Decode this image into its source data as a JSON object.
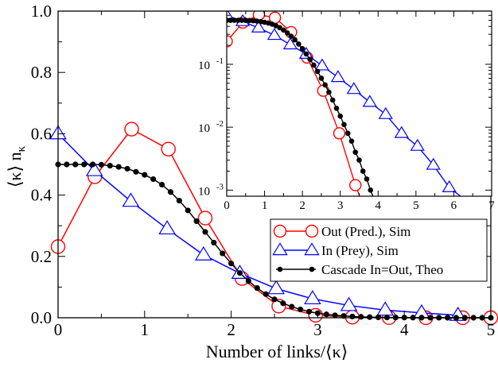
{
  "chart_data": [
    {
      "panel": "main",
      "type": "line",
      "xlabel_parts": [
        "Number of links/",
        "⟨κ⟩"
      ],
      "ylabel_parts": [
        "⟨κ⟩ n",
        "κ"
      ],
      "xlim": [
        0,
        5
      ],
      "ylim": [
        0,
        1.0
      ],
      "xticks": [
        0,
        1,
        2,
        3,
        4,
        5
      ],
      "xtick_labels": [
        "0",
        "1",
        "2",
        "3",
        "4",
        "5"
      ],
      "yticks": [
        0,
        0.2,
        0.4,
        0.6,
        0.8,
        1.0
      ],
      "ytick_labels": [
        "0.0",
        "0.2",
        "0.4",
        "0.6",
        "0.8",
        "1.0"
      ],
      "grid": false,
      "legend_position": "bottom-right",
      "series": [
        {
          "name": "Out (Pred.), Sim",
          "color": "#ff0000",
          "marker": "circle",
          "x": [
            0,
            0.425,
            0.85,
            1.275,
            1.7,
            2.125,
            2.55,
            2.975,
            3.4,
            3.825,
            4.25,
            4.675,
            5.0
          ],
          "y": [
            0.232,
            0.46,
            0.615,
            0.55,
            0.325,
            0.128,
            0.038,
            0.008,
            0.002,
            0.0005,
            0.0,
            0.0,
            0.0
          ]
        },
        {
          "name": "In (Prey), Sim",
          "color": "#0000ff",
          "marker": "triangle",
          "x": [
            0,
            0.42,
            0.84,
            1.26,
            1.68,
            2.1,
            2.52,
            2.94,
            3.36,
            3.78,
            4.2,
            4.62,
            5.04
          ],
          "y": [
            0.6,
            0.48,
            0.38,
            0.29,
            0.205,
            0.145,
            0.095,
            0.062,
            0.04,
            0.025,
            0.016,
            0.008,
            0.005
          ]
        },
        {
          "name": "Cascade In=Out, Theo",
          "color": "#000000",
          "marker": "dot",
          "x": [
            0,
            0.1,
            0.2,
            0.3,
            0.4,
            0.5,
            0.6,
            0.7,
            0.8,
            0.9,
            1.0,
            1.1,
            1.2,
            1.3,
            1.4,
            1.5,
            1.6,
            1.7,
            1.8,
            1.9,
            2.0,
            2.1,
            2.2,
            2.3,
            2.4,
            2.5,
            2.6,
            2.7,
            2.8,
            2.9,
            3.0,
            3.1,
            3.2,
            3.3,
            3.4,
            3.5,
            3.6,
            3.7,
            3.8,
            3.9,
            4.0,
            4.1,
            4.2,
            4.3,
            4.4,
            4.5,
            4.6,
            4.7,
            4.8,
            4.9,
            5.0
          ],
          "y": [
            0.5,
            0.5,
            0.5,
            0.5,
            0.5,
            0.499,
            0.496,
            0.492,
            0.486,
            0.476,
            0.466,
            0.452,
            0.434,
            0.41,
            0.382,
            0.35,
            0.315,
            0.28,
            0.245,
            0.21,
            0.177,
            0.146,
            0.12,
            0.097,
            0.077,
            0.06,
            0.047,
            0.036,
            0.027,
            0.02,
            0.015,
            0.011,
            0.008,
            0.006,
            0.004,
            0.003,
            0.002,
            0.0015,
            0.001,
            0.0008,
            0.0006,
            0.0004,
            0.0003,
            0.0002,
            0.0001,
            0.0,
            0.0,
            0.0,
            0.0,
            0.0,
            0.0
          ]
        }
      ]
    },
    {
      "panel": "inset",
      "type": "line",
      "log_y": true,
      "xlim": [
        0,
        7
      ],
      "ylim": [
        0.0008,
        0.7
      ],
      "xticks": [
        0,
        1,
        2,
        3,
        4,
        5,
        6,
        7
      ],
      "xtick_labels": [
        "0",
        "1",
        "2",
        "3",
        "4",
        "5",
        "6",
        "7"
      ],
      "yticks": [
        0.001,
        0.01,
        0.1
      ],
      "ytick_labels": [
        {
          "base": "10",
          "exp": "-3"
        },
        {
          "base": "10",
          "exp": "-2"
        },
        {
          "base": "10",
          "exp": "-1"
        }
      ],
      "grid": false,
      "series": [
        {
          "name": "Out (Pred.), Sim",
          "color": "#ff0000",
          "marker": "circle",
          "x": [
            0,
            0.425,
            0.85,
            1.275,
            1.7,
            2.125,
            2.55,
            2.975,
            3.4,
            3.55
          ],
          "y": [
            0.232,
            0.46,
            0.615,
            0.55,
            0.325,
            0.128,
            0.038,
            0.008,
            0.0012,
            0.0007
          ]
        },
        {
          "name": "In (Prey), Sim",
          "color": "#0000ff",
          "marker": "triangle",
          "x": [
            0,
            0.42,
            0.84,
            1.26,
            1.68,
            2.1,
            2.52,
            2.94,
            3.36,
            3.78,
            4.2,
            4.62,
            5.04,
            5.46,
            5.88,
            6.3
          ],
          "y": [
            0.6,
            0.48,
            0.38,
            0.29,
            0.205,
            0.145,
            0.095,
            0.062,
            0.04,
            0.025,
            0.016,
            0.008,
            0.005,
            0.0025,
            0.0011,
            0.0007
          ]
        },
        {
          "name": "Cascade In=Out, Theo",
          "color": "#000000",
          "marker": "dot",
          "x": [
            0,
            0.1,
            0.2,
            0.3,
            0.4,
            0.5,
            0.6,
            0.7,
            0.8,
            0.9,
            1.0,
            1.1,
            1.2,
            1.3,
            1.4,
            1.5,
            1.6,
            1.7,
            1.8,
            1.9,
            2.0,
            2.1,
            2.2,
            2.3,
            2.4,
            2.5,
            2.6,
            2.7,
            2.8,
            2.9,
            3.0,
            3.1,
            3.2,
            3.3,
            3.4,
            3.5,
            3.6,
            3.7,
            3.8,
            3.9
          ],
          "y": [
            0.5,
            0.5,
            0.5,
            0.5,
            0.5,
            0.499,
            0.496,
            0.492,
            0.486,
            0.476,
            0.466,
            0.452,
            0.434,
            0.41,
            0.382,
            0.35,
            0.315,
            0.28,
            0.245,
            0.21,
            0.177,
            0.146,
            0.12,
            0.097,
            0.077,
            0.06,
            0.047,
            0.036,
            0.027,
            0.02,
            0.015,
            0.011,
            0.008,
            0.006,
            0.004,
            0.003,
            0.002,
            0.0015,
            0.001,
            0.0007
          ]
        }
      ]
    }
  ]
}
